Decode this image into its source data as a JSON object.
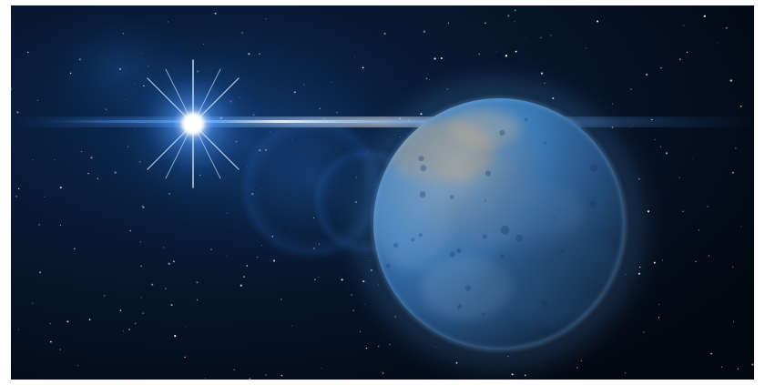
{
  "scene": {
    "subject": "space-illustration",
    "elements": [
      "bright-star",
      "planet",
      "starfield",
      "lens-flare"
    ],
    "colors": {
      "space_background": "#050a14",
      "star_core": "#ffffff",
      "star_glow": "#3a8cff",
      "flare_haze": "#1f5fb0",
      "planet_blue": "#3f7fbd",
      "planet_dark": "#1b3f6b",
      "planet_highlight": "#c9a57a",
      "atmosphere_glow": "#5fb0ff"
    }
  }
}
